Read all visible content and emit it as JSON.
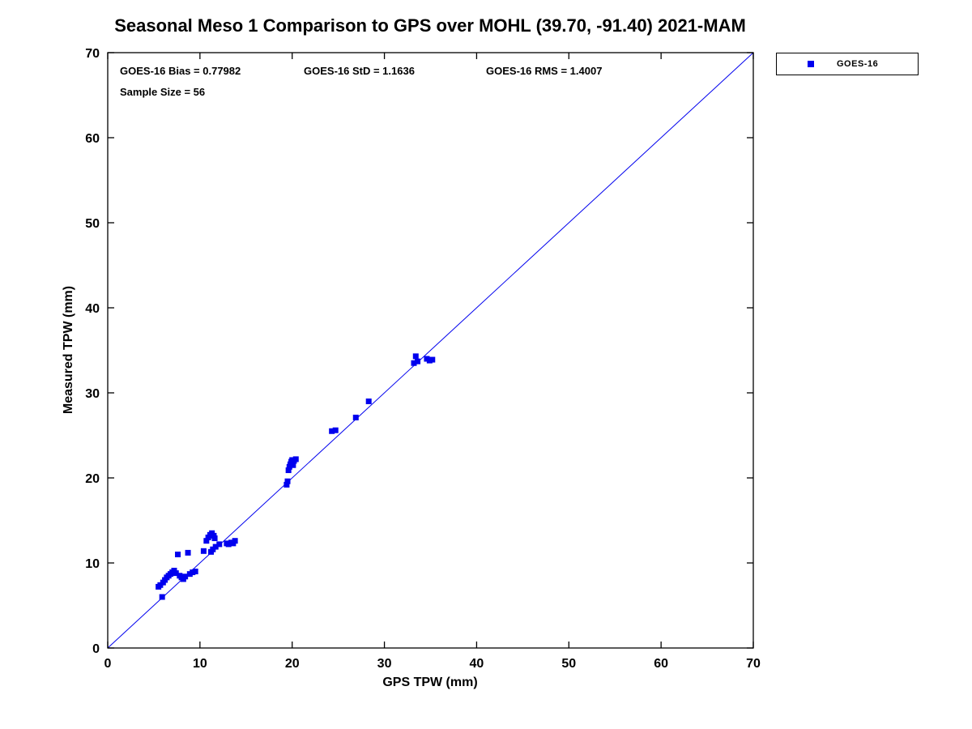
{
  "title": "Seasonal Meso 1 Comparison to GPS over MOHL (39.70, -91.40) 2021-MAM",
  "stats": {
    "bias": "GOES-16 Bias = 0.77982",
    "std": "GOES-16 StD = 1.1636",
    "rms": "GOES-16 RMS = 1.4007",
    "sample_size": "Sample Size = 56"
  },
  "legend": {
    "label": "GOES-16",
    "marker_color": "#0000ee"
  },
  "chart_data": {
    "type": "scatter",
    "title": "Seasonal Meso 1 Comparison to GPS over MOHL (39.70, -91.40) 2021-MAM",
    "xlabel": "GPS TPW (mm)",
    "ylabel": "Measured TPW (mm)",
    "xlim": [
      0,
      70
    ],
    "ylim": [
      0,
      70
    ],
    "xticks": [
      0,
      10,
      20,
      30,
      40,
      50,
      60,
      70
    ],
    "yticks": [
      0,
      10,
      20,
      30,
      40,
      50,
      60,
      70
    ],
    "grid": false,
    "legend_position": "outside-top-right",
    "reference_line": {
      "from": [
        0,
        0
      ],
      "to": [
        70,
        70
      ],
      "color": "#0000ee",
      "width": 1
    },
    "series": [
      {
        "name": "GOES-16",
        "marker": "square",
        "color": "#0000ee",
        "points": [
          [
            5.5,
            7.2
          ],
          [
            5.7,
            7.4
          ],
          [
            5.9,
            6.0
          ],
          [
            6.0,
            7.7
          ],
          [
            6.2,
            8.0
          ],
          [
            6.4,
            8.3
          ],
          [
            6.6,
            8.5
          ],
          [
            6.8,
            8.7
          ],
          [
            7.0,
            8.9
          ],
          [
            7.2,
            9.1
          ],
          [
            7.4,
            8.8
          ],
          [
            7.6,
            11.0
          ],
          [
            7.8,
            8.5
          ],
          [
            8.0,
            8.3
          ],
          [
            8.2,
            8.1
          ],
          [
            8.4,
            8.4
          ],
          [
            8.7,
            11.2
          ],
          [
            8.9,
            8.7
          ],
          [
            9.2,
            8.9
          ],
          [
            9.5,
            9.0
          ],
          [
            10.4,
            11.4
          ],
          [
            10.7,
            12.6
          ],
          [
            10.9,
            13.0
          ],
          [
            11.1,
            13.3
          ],
          [
            11.3,
            13.5
          ],
          [
            11.5,
            13.2
          ],
          [
            11.6,
            12.9
          ],
          [
            11.2,
            11.3
          ],
          [
            11.4,
            11.6
          ],
          [
            11.7,
            11.9
          ],
          [
            12.1,
            12.2
          ],
          [
            12.9,
            12.3
          ],
          [
            13.1,
            12.2
          ],
          [
            13.4,
            12.4
          ],
          [
            13.6,
            12.3
          ],
          [
            13.8,
            12.6
          ],
          [
            19.4,
            19.2
          ],
          [
            19.5,
            19.6
          ],
          [
            19.6,
            20.9
          ],
          [
            19.7,
            21.3
          ],
          [
            19.8,
            21.6
          ],
          [
            19.9,
            21.9
          ],
          [
            20.0,
            22.1
          ],
          [
            20.1,
            21.5
          ],
          [
            20.2,
            22.0
          ],
          [
            20.4,
            22.2
          ],
          [
            24.3,
            25.5
          ],
          [
            24.7,
            25.6
          ],
          [
            26.9,
            27.1
          ],
          [
            28.3,
            29.0
          ],
          [
            33.2,
            33.5
          ],
          [
            33.4,
            34.3
          ],
          [
            33.6,
            33.7
          ],
          [
            34.6,
            34.0
          ],
          [
            34.9,
            33.8
          ],
          [
            35.2,
            33.9
          ]
        ]
      }
    ]
  }
}
